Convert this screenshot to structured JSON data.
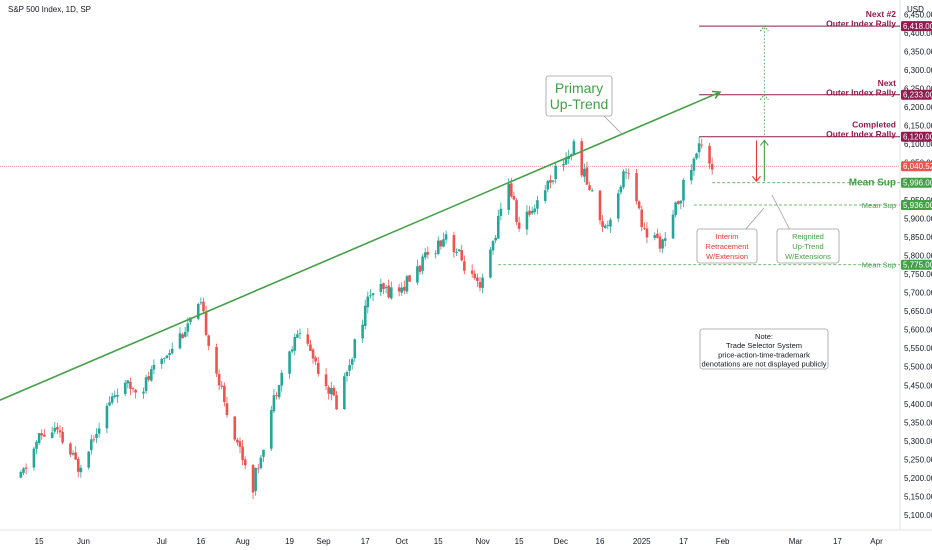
{
  "header": {
    "symbol_title": "S&P 500 Index, 1D, SP"
  },
  "chart_data": {
    "type": "candlestick",
    "title": "S&P 500 Index, 1D, SP",
    "currency_label": "USD",
    "ylim": [
      5060,
      6475
    ],
    "y_ticks": [
      6450,
      6400,
      6350,
      6300,
      6250,
      6200,
      6150,
      6100,
      6050,
      6000,
      5950,
      5900,
      5850,
      5800,
      5750,
      5700,
      5650,
      5600,
      5550,
      5500,
      5450,
      5400,
      5350,
      5300,
      5250,
      5200,
      5150,
      5100
    ],
    "y_tick_labels": [
      "6,450.00",
      "6,400.00",
      "6,350.00",
      "6,300.00",
      "6,250.00",
      "6,200.00",
      "6,150.00",
      "6,100.00",
      "6,050.00",
      "6,000.00",
      "5,950.00",
      "5,900.00",
      "5,850.00",
      "5,800.00",
      "5,750.00",
      "5,700.00",
      "5,650.00",
      "5,600.00",
      "5,550.00",
      "5,500.00",
      "5,450.00",
      "5,400.00",
      "5,350.00",
      "5,300.00",
      "5,250.00",
      "5,200.00",
      "5,150.00",
      "5,100.00"
    ],
    "x_labels": [
      "15",
      "Jun",
      "Jul",
      "16",
      "Aug",
      "19",
      "Sep",
      "17",
      "Oct",
      "15",
      "Nov",
      "15",
      "Dec",
      "16",
      "2025",
      "17",
      "Feb",
      "Mar",
      "17",
      "Apr"
    ],
    "x_label_dates": [
      "2024-05-15",
      "2024-06-01",
      "2024-07-01",
      "2024-07-16",
      "2024-08-01",
      "2024-08-19",
      "2024-09-01",
      "2024-09-17",
      "2024-10-01",
      "2024-10-15",
      "2024-11-01",
      "2024-11-15",
      "2024-12-01",
      "2024-12-16",
      "2025-01-01",
      "2025-01-17",
      "2025-02-01",
      "2025-03-01",
      "2025-03-17",
      "2025-04-01"
    ],
    "ohlc_anchors": [
      [
        "2024-05-08",
        5200
      ],
      [
        "2024-05-15",
        5310
      ],
      [
        "2024-05-21",
        5330
      ],
      [
        "2024-05-30",
        5230
      ],
      [
        "2024-06-07",
        5350
      ],
      [
        "2024-06-14",
        5440
      ],
      [
        "2024-06-24",
        5450
      ],
      [
        "2024-07-03",
        5540
      ],
      [
        "2024-07-16",
        5660
      ],
      [
        "2024-07-25",
        5400
      ],
      [
        "2024-08-05",
        5180
      ],
      [
        "2024-08-15",
        5470
      ],
      [
        "2024-08-23",
        5600
      ],
      [
        "2024-09-06",
        5400
      ],
      [
        "2024-09-19",
        5700
      ],
      [
        "2024-10-01",
        5710
      ],
      [
        "2024-10-18",
        5860
      ],
      [
        "2024-10-31",
        5700
      ],
      [
        "2024-11-11",
        6000
      ],
      [
        "2024-11-15",
        5870
      ],
      [
        "2024-11-29",
        6030
      ],
      [
        "2024-12-06",
        6090
      ],
      [
        "2024-12-18",
        5870
      ],
      [
        "2024-12-26",
        6040
      ],
      [
        "2025-01-02",
        5860
      ],
      [
        "2025-01-10",
        5830
      ],
      [
        "2025-01-15",
        5950
      ],
      [
        "2025-01-24",
        6110
      ],
      [
        "2025-01-28",
        6040
      ]
    ],
    "last_price": 6040.52,
    "last_price_label": "6,040.52",
    "trendline": {
      "start": [
        "2024-04-30",
        5410
      ],
      "end": [
        "2025-01-31",
        6240
      ]
    },
    "levels": [
      {
        "price": 6418,
        "label": "6,418.00",
        "text_lines": [
          "Next #2",
          "Outer Index Rally"
        ],
        "color": "#8e1c4e",
        "style": "solid",
        "start": "2025-01-23"
      },
      {
        "price": 6233,
        "label": "6,233.00",
        "text_lines": [
          "Next",
          "Outer Index Rally"
        ],
        "color": "#8e1c4e",
        "style": "solid",
        "start": "2025-01-23"
      },
      {
        "price": 6120,
        "label": "6,120.00",
        "text_lines": [
          "Completed",
          "Outer Index Rally"
        ],
        "color": "#8e1c4e",
        "style": "solid",
        "start": "2025-01-23"
      },
      {
        "price": 5996,
        "label": "5,996.00",
        "text_lines": [
          "Mean Sup"
        ],
        "color": "#43a047",
        "style": "dashed",
        "start": "2025-01-28",
        "big": true
      },
      {
        "price": 5936,
        "label": "5,936.00",
        "text_lines": [
          "Mean Sup"
        ],
        "color": "#43a047",
        "style": "dashed",
        "start": "2025-01-21"
      },
      {
        "price": 5775,
        "label": "5,775.00",
        "text_lines": [
          "Mean Sup"
        ],
        "color": "#43a047",
        "style": "dashed",
        "start": "2024-11-07"
      }
    ],
    "arrows": [
      {
        "x": "2025-02-14",
        "from": 6110,
        "to": 6000,
        "color": "#e53935",
        "style": "solid"
      },
      {
        "x": "2025-02-17",
        "from": 6000,
        "to": 6110,
        "color": "#43a047",
        "style": "solid"
      },
      {
        "x": "2025-02-17",
        "from": 6125,
        "to": 6233,
        "color": "#43a047",
        "style": "dotted"
      },
      {
        "x": "2025-02-17",
        "from": 6240,
        "to": 6418,
        "color": "#43a047",
        "style": "dotted"
      }
    ],
    "annotations": {
      "primary_trend": {
        "lines": [
          "Primary",
          "Up-Trend"
        ],
        "color": "#43a047"
      },
      "interim": {
        "lines": [
          "Interim",
          "Retracement",
          "W/Extension"
        ],
        "color": "#e53935"
      },
      "reignited": {
        "lines": [
          "Reignited",
          "Up-Trend",
          "W/Extensions"
        ],
        "color": "#43a047"
      },
      "note": {
        "lines": [
          "Note:",
          "Trade Selector System",
          "price-action-time-trademark",
          "denotations are not displayed publicly"
        ]
      }
    },
    "colors": {
      "up": "#26a69a",
      "down": "#ef5350",
      "trend": "#43a047",
      "level": "#8e1c4e"
    },
    "grid": false
  }
}
